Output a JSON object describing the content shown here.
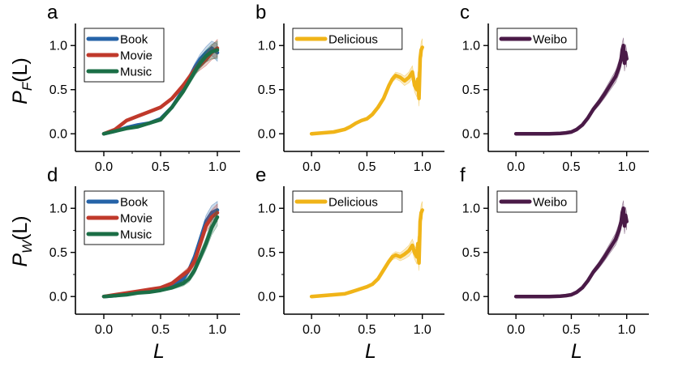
{
  "figure": {
    "ylabel_top_main": "P",
    "ylabel_top_sub": "F",
    "ylabel_top_suffix": "(L)",
    "ylabel_bottom_main": "P",
    "ylabel_bottom_sub": "W",
    "ylabel_bottom_suffix": "(L)",
    "xlabel": "L"
  },
  "colors": {
    "book": "#2563a8",
    "movie": "#c0392b",
    "music": "#1b6e46",
    "delicious": "#f0b418",
    "weibo": "#4a1a47"
  },
  "chart_data": [
    {
      "id": "a",
      "type": "line",
      "panel_label": "a",
      "xlim": [
        -0.25,
        1.2
      ],
      "ylim": [
        -0.2,
        1.25
      ],
      "xticks": [
        "0.0",
        "0.5",
        "1.0"
      ],
      "yticks": [
        "0.0",
        "0.5",
        "1.0"
      ],
      "series": [
        {
          "name": "Book",
          "color_key": "book",
          "x": [
            0,
            0.1,
            0.2,
            0.3,
            0.4,
            0.5,
            0.6,
            0.7,
            0.8,
            0.85,
            0.9,
            0.95,
            1.0
          ],
          "y": [
            0.0,
            0.03,
            0.07,
            0.1,
            0.12,
            0.17,
            0.3,
            0.5,
            0.75,
            0.85,
            0.92,
            0.97,
            0.92
          ]
        },
        {
          "name": "Movie",
          "color_key": "movie",
          "x": [
            0,
            0.1,
            0.2,
            0.3,
            0.4,
            0.5,
            0.6,
            0.7,
            0.8,
            0.85,
            0.9,
            0.95,
            1.0
          ],
          "y": [
            0.0,
            0.05,
            0.15,
            0.2,
            0.25,
            0.3,
            0.4,
            0.55,
            0.72,
            0.78,
            0.84,
            0.92,
            0.97
          ]
        },
        {
          "name": "Music",
          "color_key": "music",
          "x": [
            0,
            0.1,
            0.2,
            0.3,
            0.4,
            0.5,
            0.6,
            0.7,
            0.8,
            0.85,
            0.9,
            0.95,
            1.0
          ],
          "y": [
            0.0,
            0.03,
            0.06,
            0.08,
            0.12,
            0.16,
            0.3,
            0.48,
            0.7,
            0.8,
            0.88,
            0.93,
            0.95
          ]
        }
      ]
    },
    {
      "id": "b",
      "type": "line",
      "panel_label": "b",
      "xlim": [
        -0.25,
        1.2
      ],
      "ylim": [
        -0.2,
        1.25
      ],
      "xticks": [
        "0.0",
        "0.5",
        "1.0"
      ],
      "yticks": [
        "0.0",
        "0.5",
        "1.0"
      ],
      "series": [
        {
          "name": "Delicious",
          "color_key": "delicious",
          "x": [
            0,
            0.1,
            0.2,
            0.3,
            0.35,
            0.4,
            0.45,
            0.5,
            0.55,
            0.6,
            0.65,
            0.7,
            0.73,
            0.76,
            0.8,
            0.84,
            0.88,
            0.91,
            0.93,
            0.95,
            0.96,
            0.97,
            0.98,
            0.99,
            1.0
          ],
          "y": [
            0.0,
            0.01,
            0.02,
            0.05,
            0.08,
            0.12,
            0.15,
            0.17,
            0.22,
            0.3,
            0.4,
            0.55,
            0.62,
            0.66,
            0.64,
            0.6,
            0.64,
            0.7,
            0.55,
            0.5,
            0.62,
            0.4,
            0.85,
            0.95,
            0.98
          ]
        }
      ]
    },
    {
      "id": "c",
      "type": "line",
      "panel_label": "c",
      "xlim": [
        -0.25,
        1.2
      ],
      "ylim": [
        -0.2,
        1.25
      ],
      "xticks": [
        "0.0",
        "0.5",
        "1.0"
      ],
      "yticks": [
        "0.0",
        "0.5",
        "1.0"
      ],
      "series": [
        {
          "name": "Weibo",
          "color_key": "weibo",
          "x": [
            0,
            0.1,
            0.2,
            0.3,
            0.4,
            0.45,
            0.5,
            0.55,
            0.6,
            0.65,
            0.7,
            0.75,
            0.8,
            0.85,
            0.9,
            0.93,
            0.95,
            0.96,
            0.97,
            0.98,
            0.99,
            1.0
          ],
          "y": [
            0.0,
            0.0,
            0.0,
            0.0,
            0.005,
            0.01,
            0.02,
            0.05,
            0.1,
            0.18,
            0.28,
            0.36,
            0.45,
            0.55,
            0.65,
            0.75,
            0.85,
            0.95,
            1.0,
            0.8,
            0.92,
            0.85
          ]
        }
      ]
    },
    {
      "id": "d",
      "type": "line",
      "panel_label": "d",
      "xlim": [
        -0.25,
        1.2
      ],
      "ylim": [
        -0.2,
        1.25
      ],
      "xticks": [
        "0.0",
        "0.5",
        "1.0"
      ],
      "yticks": [
        "0.0",
        "0.5",
        "1.0"
      ],
      "series": [
        {
          "name": "Book",
          "color_key": "book",
          "x": [
            0,
            0.1,
            0.2,
            0.3,
            0.4,
            0.5,
            0.6,
            0.7,
            0.75,
            0.8,
            0.85,
            0.9,
            0.95,
            1.0
          ],
          "y": [
            0.0,
            0.01,
            0.03,
            0.05,
            0.06,
            0.08,
            0.12,
            0.2,
            0.3,
            0.45,
            0.65,
            0.85,
            0.95,
            0.98
          ]
        },
        {
          "name": "Movie",
          "color_key": "movie",
          "x": [
            0,
            0.1,
            0.2,
            0.3,
            0.4,
            0.5,
            0.6,
            0.7,
            0.75,
            0.8,
            0.85,
            0.9,
            0.95,
            1.0
          ],
          "y": [
            0.0,
            0.02,
            0.04,
            0.06,
            0.08,
            0.1,
            0.15,
            0.25,
            0.3,
            0.4,
            0.6,
            0.8,
            0.9,
            0.95
          ]
        },
        {
          "name": "Music",
          "color_key": "music",
          "x": [
            0,
            0.1,
            0.2,
            0.3,
            0.4,
            0.5,
            0.6,
            0.7,
            0.75,
            0.8,
            0.85,
            0.9,
            0.95,
            1.0
          ],
          "y": [
            0.0,
            0.01,
            0.02,
            0.04,
            0.05,
            0.07,
            0.1,
            0.15,
            0.2,
            0.3,
            0.45,
            0.6,
            0.78,
            0.9
          ]
        }
      ]
    },
    {
      "id": "e",
      "type": "line",
      "panel_label": "e",
      "xlim": [
        -0.25,
        1.2
      ],
      "ylim": [
        -0.2,
        1.25
      ],
      "xticks": [
        "0.0",
        "0.5",
        "1.0"
      ],
      "yticks": [
        "0.0",
        "0.5",
        "1.0"
      ],
      "series": [
        {
          "name": "Delicious",
          "color_key": "delicious",
          "x": [
            0,
            0.1,
            0.2,
            0.3,
            0.35,
            0.4,
            0.45,
            0.5,
            0.55,
            0.6,
            0.65,
            0.7,
            0.73,
            0.76,
            0.8,
            0.84,
            0.88,
            0.91,
            0.93,
            0.95,
            0.96,
            0.97,
            0.98,
            0.99,
            1.0
          ],
          "y": [
            0.0,
            0.01,
            0.02,
            0.03,
            0.05,
            0.07,
            0.09,
            0.11,
            0.14,
            0.2,
            0.3,
            0.4,
            0.45,
            0.47,
            0.45,
            0.48,
            0.52,
            0.58,
            0.5,
            0.45,
            0.6,
            0.38,
            0.85,
            0.95,
            0.98
          ]
        }
      ]
    },
    {
      "id": "f",
      "type": "line",
      "panel_label": "f",
      "xlim": [
        -0.25,
        1.2
      ],
      "ylim": [
        -0.2,
        1.25
      ],
      "xticks": [
        "0.0",
        "0.5",
        "1.0"
      ],
      "yticks": [
        "0.0",
        "0.5",
        "1.0"
      ],
      "series": [
        {
          "name": "Weibo",
          "color_key": "weibo",
          "x": [
            0,
            0.1,
            0.2,
            0.3,
            0.4,
            0.45,
            0.5,
            0.55,
            0.6,
            0.65,
            0.7,
            0.75,
            0.8,
            0.85,
            0.9,
            0.93,
            0.95,
            0.96,
            0.97,
            0.98,
            0.99,
            1.0
          ],
          "y": [
            0.0,
            0.0,
            0.0,
            0.0,
            0.005,
            0.01,
            0.02,
            0.05,
            0.1,
            0.18,
            0.28,
            0.36,
            0.45,
            0.55,
            0.65,
            0.75,
            0.85,
            0.95,
            1.0,
            0.8,
            0.92,
            0.85
          ]
        }
      ]
    }
  ]
}
